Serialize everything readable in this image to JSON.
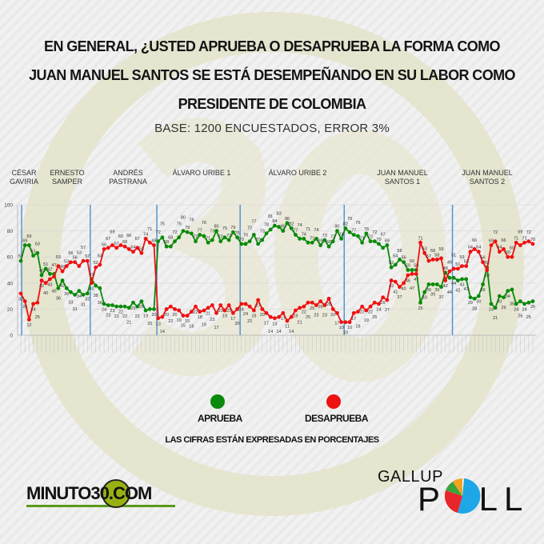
{
  "header": {
    "title_lines": [
      "EN GENERAL, ¿USTED APRUEBA O DESAPRUEBA LA FORMA COMO",
      "JUAN MANUEL SANTOS SE ESTÁ DESEMPEÑANDO EN SU LABOR COMO",
      "PRESIDENTE DE COLOMBIA"
    ],
    "subtitle": "BASE: 1200 ENCUESTADOS, ERROR 3%"
  },
  "periods": [
    {
      "label": "CÉSAR GAVIRIA"
    },
    {
      "label": "ERNESTO SAMPER"
    },
    {
      "label": "ANDRÉS PASTRANA"
    },
    {
      "label": "ÁLVARO URIBE 1"
    },
    {
      "label": "ÁLVARO URIBE 2"
    },
    {
      "label": "JUAN MANUEL SANTOS 1"
    },
    {
      "label": "JUAN MANUEL SANTOS 2"
    }
  ],
  "legend": {
    "approve": "APRUEBA",
    "disapprove": "DESAPRUEBA",
    "note": "LAS CIFRAS ESTÁN EXPRESADAS EN PORCENTAJES"
  },
  "logos": {
    "left": "MINUTO30.COM",
    "right_top": "GALLUP",
    "right_bottom": "POLL"
  },
  "colors": {
    "approve": "#0a8a0a",
    "disapprove": "#ee1111",
    "period_line": "#4a8fd0",
    "watermark": "#e2e0c6"
  },
  "chart_data": {
    "type": "line",
    "title": "",
    "xlabel": "",
    "ylabel": "",
    "ylim": [
      0,
      100
    ],
    "yticks": [
      0,
      20,
      40,
      60,
      80,
      100
    ],
    "grid": true,
    "legend_position": "bottom",
    "period_boundaries": [
      0,
      16.5,
      32.5,
      52.5,
      77.5,
      103.5
    ],
    "series": [
      {
        "name": "APRUEBA",
        "color": "#0a8a0a",
        "values": [
          57,
          69,
          69,
          61,
          63,
          46,
          51,
          47,
          47,
          36,
          42,
          36,
          33,
          31,
          34,
          31,
          32,
          43,
          38,
          36,
          24,
          23,
          23,
          22,
          22,
          22,
          21,
          25,
          22,
          26,
          19,
          20,
          20,
          72,
          75,
          68,
          68,
          72,
          75,
          80,
          79,
          78,
          72,
          77,
          76,
          71,
          73,
          80,
          72,
          75,
          73,
          79,
          75,
          70,
          70,
          72,
          77,
          70,
          73,
          78,
          81,
          84,
          83,
          80,
          86,
          82,
          77,
          74,
          74,
          71,
          71,
          74,
          69,
          73,
          68,
          72,
          80,
          74,
          82,
          79,
          77,
          76,
          71,
          78,
          72,
          72,
          70,
          67,
          69,
          52,
          54,
          58,
          56,
          50,
          50,
          50,
          25,
          33,
          39,
          39,
          39,
          37,
          48,
          44,
          44,
          42,
          43,
          43,
          29,
          28,
          30,
          39,
          52,
          24,
          21,
          30,
          29,
          34,
          35,
          24,
          26,
          24,
          25,
          26
        ]
      },
      {
        "name": "DESAPRUEBA",
        "color": "#ee1111",
        "values": [
          32,
          26,
          12,
          24,
          25,
          42,
          40,
          43,
          45,
          53,
          49,
          53,
          56,
          56,
          53,
          57,
          57,
          40,
          52,
          54,
          66,
          67,
          69,
          67,
          69,
          68,
          66,
          64,
          67,
          63,
          74,
          71,
          69,
          13,
          14,
          20,
          22,
          20,
          19,
          15,
          15,
          18,
          22,
          18,
          19,
          21,
          23,
          17,
          23,
          19,
          23,
          17,
          20,
          24,
          24,
          22,
          19,
          27,
          20,
          17,
          14,
          13,
          14,
          17,
          11,
          14,
          19,
          21,
          22,
          25,
          25,
          23,
          26,
          23,
          28,
          20,
          17,
          10,
          10,
          10,
          17,
          18,
          22,
          19,
          22,
          25,
          24,
          29,
          27,
          42,
          41,
          37,
          40,
          46,
          47,
          47,
          71,
          63,
          57,
          58,
          58,
          59,
          42,
          49,
          51,
          51,
          53,
          53,
          64,
          66,
          64,
          56,
          50,
          69,
          72,
          64,
          66,
          60,
          60,
          71,
          69,
          71,
          72,
          70
        ]
      }
    ]
  }
}
